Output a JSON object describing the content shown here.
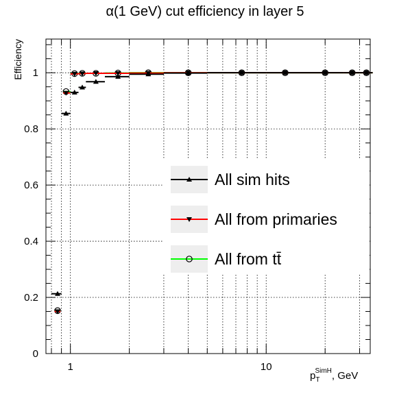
{
  "chart_data": {
    "type": "scatter",
    "title": "α(1 GeV) cut efficiency in layer 5",
    "xlabel": {
      "main": "p",
      "sub": "T",
      "sup": "SimH",
      "suffix": ", GeV"
    },
    "ylabel": "Efficiency",
    "x_scale": "log",
    "xlim": [
      0.75,
      34
    ],
    "ylim": [
      0,
      1.12
    ],
    "x_tick_labels": [
      {
        "value": 1,
        "label": "1"
      },
      {
        "value": 10,
        "label": "10"
      }
    ],
    "y_tick_labels": [
      {
        "value": 0,
        "label": "0"
      },
      {
        "value": 0.2,
        "label": "0.2"
      },
      {
        "value": 0.4,
        "label": "0.4"
      },
      {
        "value": 0.6,
        "label": "0.6"
      },
      {
        "value": 0.8,
        "label": "0.8"
      },
      {
        "value": 1,
        "label": "1"
      }
    ],
    "grid": true,
    "legend_position": "center-right",
    "series": [
      {
        "name": "All sim hits",
        "color": "#000000",
        "marker": "triangle-up",
        "points": [
          {
            "x": 0.86,
            "y": 0.213,
            "xlo": 0.8,
            "xhi": 0.9
          },
          {
            "x": 0.95,
            "y": 0.855,
            "xlo": 0.9,
            "xhi": 1.0
          },
          {
            "x": 1.05,
            "y": 0.93,
            "xlo": 1.0,
            "xhi": 1.1
          },
          {
            "x": 1.15,
            "y": 0.948,
            "xlo": 1.1,
            "xhi": 1.2
          },
          {
            "x": 1.35,
            "y": 0.968,
            "xlo": 1.2,
            "xhi": 1.5
          },
          {
            "x": 1.75,
            "y": 0.986,
            "xlo": 1.5,
            "xhi": 2.0
          },
          {
            "x": 2.5,
            "y": 0.995,
            "xlo": 2.0,
            "xhi": 3.0
          },
          {
            "x": 4,
            "y": 0.999,
            "xlo": 3.0,
            "xhi": 5.0
          },
          {
            "x": 7.5,
            "y": 1.0,
            "xlo": 5.0,
            "xhi": 10.0
          },
          {
            "x": 12.5,
            "y": 1.0,
            "xlo": 10.0,
            "xhi": 15.0
          },
          {
            "x": 20,
            "y": 1.0,
            "xlo": 15.0,
            "xhi": 25.0
          },
          {
            "x": 27.5,
            "y": 1.0,
            "xlo": 25.0,
            "xhi": 30.0
          },
          {
            "x": 32.5,
            "y": 1.0,
            "xlo": 30.0,
            "xhi": 35.0
          }
        ]
      },
      {
        "name": "All from primaries",
        "color": "#ff0000",
        "marker": "triangle-down",
        "points": [
          {
            "x": 0.86,
            "y": 0.15,
            "xlo": 0.83,
            "xhi": 0.89
          },
          {
            "x": 0.95,
            "y": 0.928,
            "xlo": 0.92,
            "xhi": 1.0
          },
          {
            "x": 1.05,
            "y": 0.996,
            "xlo": 1.0,
            "xhi": 1.1
          },
          {
            "x": 1.15,
            "y": 0.997,
            "xlo": 1.1,
            "xhi": 1.2
          },
          {
            "x": 1.35,
            "y": 0.998,
            "xlo": 1.2,
            "xhi": 1.5
          },
          {
            "x": 1.75,
            "y": 0.998,
            "xlo": 1.5,
            "xhi": 2.0
          },
          {
            "x": 2.5,
            "y": 0.999,
            "xlo": 2.0,
            "xhi": 3.0
          },
          {
            "x": 4,
            "y": 1.0,
            "xlo": 3.0,
            "xhi": 5.0
          },
          {
            "x": 7.5,
            "y": 1.0,
            "xlo": 5.0,
            "xhi": 10.0
          },
          {
            "x": 12.5,
            "y": 1.0,
            "xlo": 10.0,
            "xhi": 15.0
          },
          {
            "x": 20,
            "y": 1.0,
            "xlo": 15.0,
            "xhi": 25.0
          },
          {
            "x": 27.5,
            "y": 1.0,
            "xlo": 25.0,
            "xhi": 30.0
          },
          {
            "x": 32.5,
            "y": 1.0,
            "xlo": 30.0,
            "xhi": 35.0
          }
        ]
      },
      {
        "name": "All from tt̄",
        "color": "#00ff00",
        "marker": "circle-open",
        "points": [
          {
            "x": 0.86,
            "y": 0.153,
            "xlo": 0.83,
            "xhi": 0.89
          },
          {
            "x": 0.95,
            "y": 0.933,
            "xlo": 0.92,
            "xhi": 1.0
          },
          {
            "x": 1.05,
            "y": 0.997,
            "xlo": 1.0,
            "xhi": 1.1
          },
          {
            "x": 1.15,
            "y": 0.998,
            "xlo": 1.1,
            "xhi": 1.2
          },
          {
            "x": 1.35,
            "y": 0.998,
            "xlo": 1.2,
            "xhi": 1.5
          },
          {
            "x": 1.75,
            "y": 0.999,
            "xlo": 1.5,
            "xhi": 2.0
          },
          {
            "x": 2.5,
            "y": 1.0,
            "xlo": 2.0,
            "xhi": 3.0
          },
          {
            "x": 4,
            "y": 1.0,
            "xlo": 3.0,
            "xhi": 5.0
          },
          {
            "x": 7.5,
            "y": 1.0,
            "xlo": 5.0,
            "xhi": 10.0
          },
          {
            "x": 12.5,
            "y": 1.0,
            "xlo": 10.0,
            "xhi": 15.0
          },
          {
            "x": 20,
            "y": 1.0,
            "xlo": 15.0,
            "xhi": 25.0
          },
          {
            "x": 27.5,
            "y": 1.0,
            "xlo": 25.0,
            "xhi": 30.0
          },
          {
            "x": 32.5,
            "y": 1.0,
            "xlo": 30.0,
            "xhi": 35.0
          }
        ]
      }
    ]
  }
}
